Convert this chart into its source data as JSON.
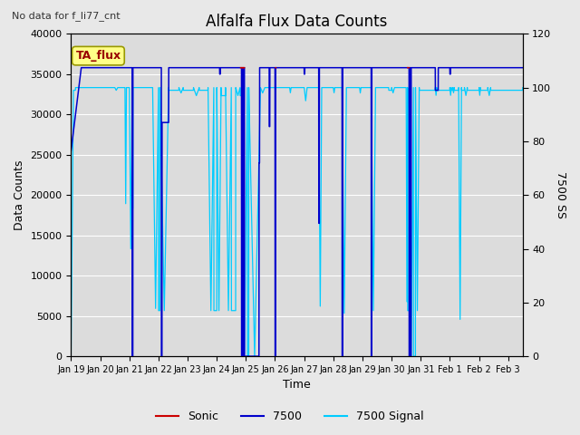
{
  "title": "Alfalfa Flux Data Counts",
  "subtitle": "No data for f_li77_cnt",
  "xlabel": "Time",
  "ylabel_left": "Data Counts",
  "ylabel_right": "7500 SS",
  "ylim_left": [
    0,
    40000
  ],
  "ylim_right": [
    0,
    120
  ],
  "yticks_left": [
    0,
    5000,
    10000,
    15000,
    20000,
    25000,
    30000,
    35000,
    40000
  ],
  "yticks_right": [
    0,
    20,
    40,
    60,
    80,
    100,
    120
  ],
  "fig_bg": "#e8e8e8",
  "plot_bg": "#dcdcdc",
  "grid_color": "#ffffff",
  "blue_color": "#0000cc",
  "red_color": "#cc0000",
  "cyan_color": "#00ccff",
  "annotation_text": "TA_flux",
  "annotation_fg": "#990000",
  "annotation_bg": "#ffff88",
  "annotation_border": "#999900",
  "x_tick_labels": [
    "Jan 19",
    "Jan 20",
    "Jan 21",
    "Jan 22",
    "Jan 23",
    "Jan 24",
    "Jan 25",
    "Jan 26",
    "Jan 27",
    "Jan 28",
    "Jan 29",
    "Jan 30",
    "Jan 31",
    "Feb 1",
    "Feb 2",
    "Feb 3"
  ],
  "total_days": 15.5
}
